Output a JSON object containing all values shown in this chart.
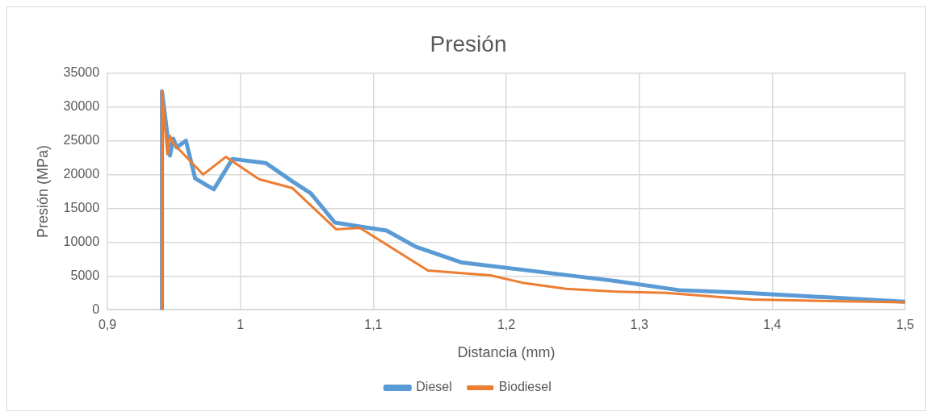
{
  "chart_data": {
    "type": "line",
    "title": "Presión",
    "xlabel": "Distancia (mm)",
    "ylabel": "Presión (MPa)",
    "xlim": [
      0.9,
      1.5
    ],
    "xticks": [
      {
        "value": 0.9,
        "label": "0,9"
      },
      {
        "value": 1,
        "label": "1"
      },
      {
        "value": 1.1,
        "label": "1,1"
      },
      {
        "value": 1.2,
        "label": "1,2"
      },
      {
        "value": 1.3,
        "label": "1,3"
      },
      {
        "value": 1.4,
        "label": "1,4"
      },
      {
        "value": 1.5,
        "label": "1,5"
      }
    ],
    "ylim": [
      0,
      35000
    ],
    "yticks": [
      0,
      5000,
      10000,
      15000,
      20000,
      25000,
      30000,
      35000
    ],
    "grid": true,
    "legend": "bottom",
    "marker": "none",
    "line_style": "solid",
    "series": [
      {
        "name": "Diesel",
        "color": "#5b9bd5",
        "x": [
          0.941,
          0.941,
          0.947,
          0.9495,
          0.952,
          0.959,
          0.966,
          0.98,
          0.994,
          1.019,
          1.039,
          1.053,
          1.071,
          1.09,
          1.11,
          1.132,
          1.166,
          1.221,
          1.28,
          1.33,
          1.38,
          1.5
        ],
        "values": [
          0,
          32300,
          22800,
          25300,
          24000,
          25000,
          19400,
          17800,
          22300,
          21700,
          19000,
          17200,
          12900,
          12300,
          11700,
          9300,
          7000,
          5700,
          4300,
          2900,
          2500,
          1200
        ]
      },
      {
        "name": "Biodiesel",
        "color": "#ed7d31",
        "x": [
          0.941,
          0.941,
          0.945,
          0.947,
          0.95,
          0.972,
          0.989,
          1.014,
          1.039,
          1.072,
          1.09,
          1.141,
          1.168,
          1.188,
          1.212,
          1.245,
          1.28,
          1.32,
          1.384,
          1.5
        ],
        "values": [
          0,
          32300,
          23000,
          25700,
          24500,
          20000,
          22600,
          19300,
          18000,
          11900,
          12100,
          5800,
          5400,
          5100,
          4000,
          3100,
          2700,
          2500,
          1500,
          1100
        ]
      }
    ]
  }
}
